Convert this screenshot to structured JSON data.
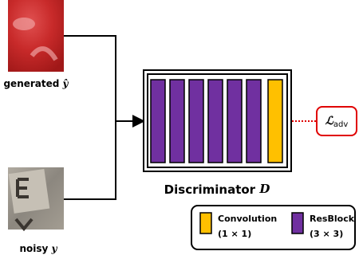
{
  "inputs": [
    {
      "label": "generated",
      "symbol": "ŷ"
    },
    {
      "label": "noisy",
      "symbol": "y"
    }
  ],
  "discriminator": {
    "label": "Discriminator",
    "symbol": "D"
  },
  "loss": {
    "symbol": "ℒ",
    "subscript": "adv"
  },
  "legend": [
    {
      "label": "Convolution",
      "size": "(1 × 1)"
    },
    {
      "label": "ResBlock",
      "size": "(3 × 3)"
    }
  ]
}
